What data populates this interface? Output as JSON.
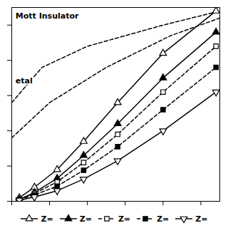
{
  "chart_data": {
    "type": "line",
    "xlim": [
      0.0,
      0.55
    ],
    "ylim": [
      0.0,
      0.55
    ],
    "xticks": [
      0.0,
      0.1,
      0.2,
      0.3,
      0.4,
      0.5
    ],
    "yticks": [
      0.0,
      0.1,
      0.2,
      0.3,
      0.4,
      0.5
    ],
    "tick_labels": false,
    "grid": false,
    "legend": "bottom",
    "series": [
      {
        "x": [
          0.0,
          0.08,
          0.2,
          0.4,
          0.55
        ],
        "values": [
          0.28,
          0.38,
          0.44,
          0.5,
          0.54
        ],
        "color": "black",
        "line_style": "dashed"
      },
      {
        "x": [
          0.0,
          0.1,
          0.25,
          0.42,
          0.55
        ],
        "values": [
          0.18,
          0.28,
          0.38,
          0.47,
          0.52
        ],
        "color": "black",
        "line_style": "dashed"
      },
      {
        "name": "Z=",
        "color": "black",
        "marker": "triangle-up-open",
        "line_style": "solid",
        "x": [
          0.02,
          0.06,
          0.12,
          0.19,
          0.28,
          0.4,
          0.54
        ],
        "values": [
          0.01,
          0.04,
          0.09,
          0.17,
          0.28,
          0.42,
          0.54
        ]
      },
      {
        "name": "Z=",
        "color": "black",
        "marker": "triangle-up-filled",
        "line_style": "solid",
        "x": [
          0.02,
          0.06,
          0.12,
          0.19,
          0.28,
          0.4,
          0.54
        ],
        "values": [
          0.005,
          0.025,
          0.065,
          0.13,
          0.22,
          0.35,
          0.48
        ]
      },
      {
        "name": "Z=",
        "color": "black",
        "marker": "square-open",
        "line_style": "dashed",
        "x": [
          0.02,
          0.06,
          0.12,
          0.19,
          0.28,
          0.4,
          0.54
        ],
        "values": [
          0.005,
          0.022,
          0.055,
          0.11,
          0.19,
          0.31,
          0.44
        ]
      },
      {
        "name": "Z=",
        "color": "black",
        "marker": "square-filled",
        "line_style": "dashed",
        "x": [
          0.02,
          0.06,
          0.12,
          0.19,
          0.28,
          0.4,
          0.54
        ],
        "values": [
          0.005,
          0.018,
          0.043,
          0.088,
          0.155,
          0.26,
          0.38
        ]
      },
      {
        "name": "Z=",
        "color": "black",
        "marker": "triangle-down-open",
        "line_style": "solid",
        "x": [
          0.02,
          0.06,
          0.12,
          0.19,
          0.28,
          0.4,
          0.54
        ],
        "values": [
          0.003,
          0.012,
          0.03,
          0.063,
          0.115,
          0.2,
          0.31
        ]
      }
    ],
    "annotations": [
      {
        "text": "Mott Insulator",
        "x": 0.01,
        "y": 0.535
      },
      {
        "text": "etal",
        "x": 0.01,
        "y": 0.35
      }
    ]
  }
}
